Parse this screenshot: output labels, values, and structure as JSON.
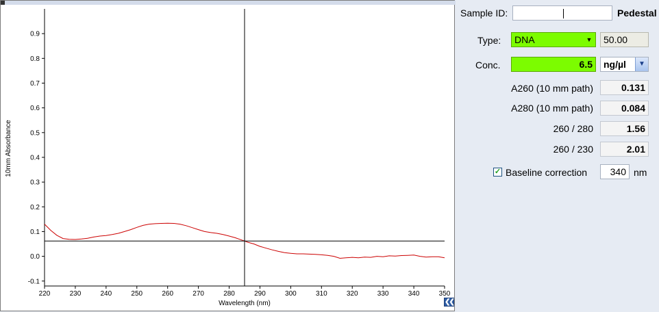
{
  "chart_data": {
    "type": "line",
    "xlabel": "Wavelength (nm)",
    "ylabel": "10mm Absorbance",
    "xlim": [
      220,
      350
    ],
    "ylim": [
      -0.12,
      1.0
    ],
    "x_ticks": [
      220,
      230,
      240,
      250,
      260,
      270,
      280,
      290,
      300,
      310,
      320,
      330,
      340,
      350
    ],
    "y_ticks": [
      -0.1,
      0.0,
      0.1,
      0.2,
      0.3,
      0.4,
      0.5,
      0.6,
      0.7,
      0.8,
      0.9
    ],
    "y_tick_labels": [
      "-0.1",
      "0.0",
      "0.1",
      "0.2",
      "0.3",
      "0.4",
      "0.5",
      "0.6",
      "0.7",
      "0.8",
      "0.9"
    ],
    "grid": false,
    "series": [
      {
        "color": "#cc0000",
        "x": [
          220,
          222,
          224,
          226,
          228,
          230,
          232,
          234,
          236,
          238,
          240,
          242,
          244,
          246,
          248,
          250,
          252,
          254,
          256,
          258,
          260,
          262,
          264,
          266,
          268,
          270,
          272,
          274,
          276,
          278,
          280,
          282,
          284,
          285,
          286,
          288,
          290,
          292,
          294,
          296,
          298,
          300,
          302,
          304,
          306,
          308,
          310,
          312,
          314,
          316,
          318,
          320,
          322,
          324,
          326,
          328,
          330,
          332,
          334,
          336,
          338,
          340,
          342,
          344,
          346,
          348,
          350
        ],
        "y": [
          0.13,
          0.105,
          0.085,
          0.072,
          0.069,
          0.068,
          0.07,
          0.073,
          0.078,
          0.082,
          0.084,
          0.088,
          0.093,
          0.1,
          0.108,
          0.117,
          0.125,
          0.13,
          0.132,
          0.133,
          0.134,
          0.133,
          0.13,
          0.124,
          0.116,
          0.108,
          0.1,
          0.096,
          0.093,
          0.088,
          0.082,
          0.075,
          0.066,
          0.062,
          0.057,
          0.05,
          0.04,
          0.033,
          0.026,
          0.02,
          0.015,
          0.012,
          0.01,
          0.01,
          0.009,
          0.008,
          0.006,
          0.004,
          0.0,
          -0.008,
          -0.006,
          -0.004,
          -0.006,
          -0.003,
          -0.004,
          0.0,
          -0.002,
          0.002,
          0.001,
          0.003,
          0.004,
          0.005,
          0.0,
          -0.003,
          -0.002,
          -0.002,
          -0.006
        ]
      }
    ],
    "cursor": {
      "x": 285,
      "y": 0.062
    }
  },
  "sample": {
    "id_label": "Sample ID:",
    "id_value": "",
    "mode_label": "Pedestal"
  },
  "type": {
    "label": "Type:",
    "value": "DNA",
    "factor": "50.00"
  },
  "conc": {
    "label": "Conc.",
    "value": "6.5",
    "unit": "ng/µl"
  },
  "readings": [
    {
      "label": "A260 (10 mm path)",
      "value": "0.131"
    },
    {
      "label": "A280 (10 mm path)",
      "value": "0.084"
    },
    {
      "label": "260 / 280",
      "value": "1.56"
    },
    {
      "label": "260 / 230",
      "value": "2.01"
    }
  ],
  "baseline": {
    "label": "Baseline correction",
    "checked": true,
    "value": "340",
    "unit": "nm"
  },
  "icons": {
    "collapse": "double-chevron-left-icon",
    "check": "checkmark-icon",
    "dropdown": "chevron-down-icon"
  }
}
